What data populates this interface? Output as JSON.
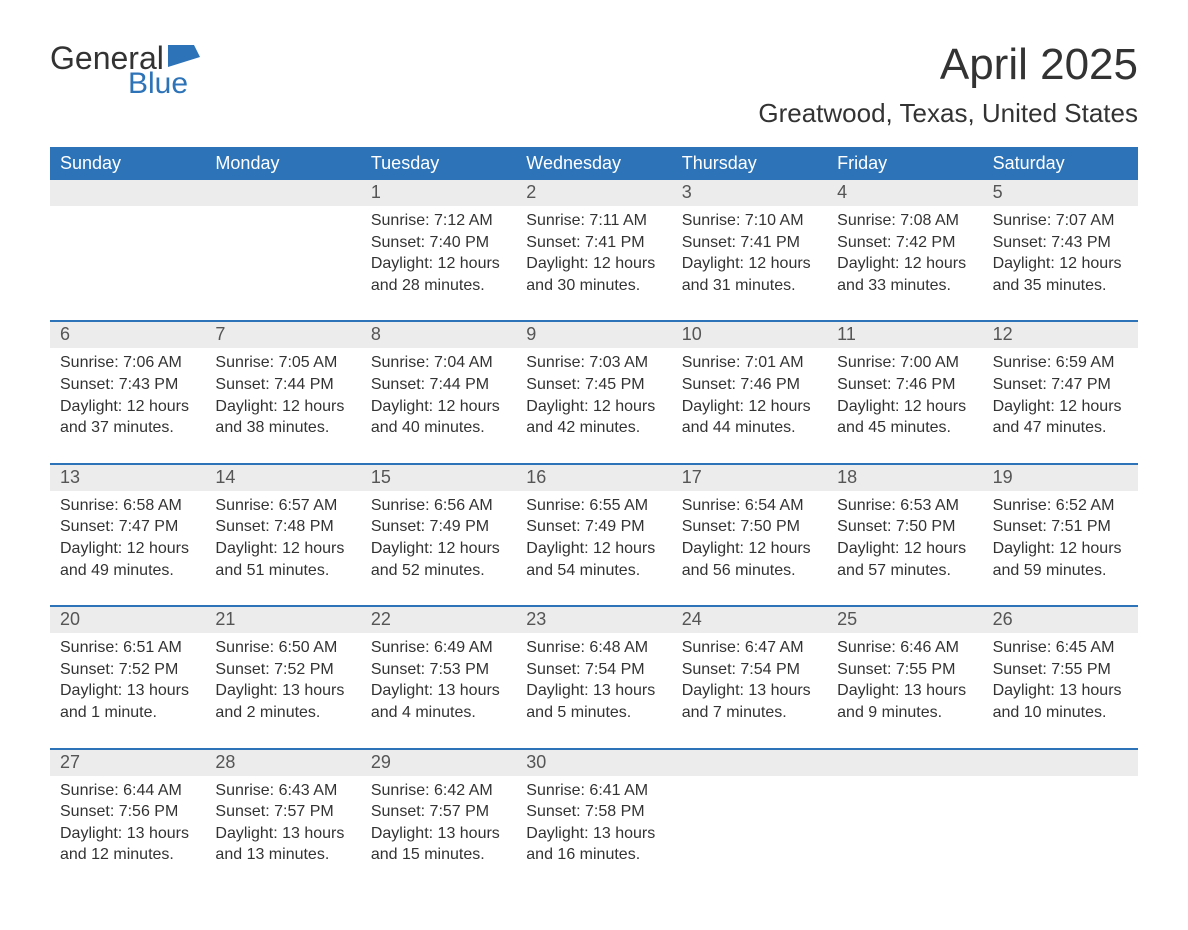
{
  "brand": {
    "name1": "General",
    "name2": "Blue",
    "icon_color": "#2d73b8"
  },
  "title": "April 2025",
  "location": "Greatwood, Texas, United States",
  "colors": {
    "header_bg": "#2d73b8",
    "header_text": "#ffffff",
    "daynum_bg": "#ececec",
    "text": "#333333",
    "week_border": "#2d73b8"
  },
  "days_of_week": [
    "Sunday",
    "Monday",
    "Tuesday",
    "Wednesday",
    "Thursday",
    "Friday",
    "Saturday"
  ],
  "weeks": [
    [
      {
        "n": "",
        "sunrise": "",
        "sunset": "",
        "daylight": ""
      },
      {
        "n": "",
        "sunrise": "",
        "sunset": "",
        "daylight": ""
      },
      {
        "n": "1",
        "sunrise": "Sunrise: 7:12 AM",
        "sunset": "Sunset: 7:40 PM",
        "daylight": "Daylight: 12 hours and 28 minutes."
      },
      {
        "n": "2",
        "sunrise": "Sunrise: 7:11 AM",
        "sunset": "Sunset: 7:41 PM",
        "daylight": "Daylight: 12 hours and 30 minutes."
      },
      {
        "n": "3",
        "sunrise": "Sunrise: 7:10 AM",
        "sunset": "Sunset: 7:41 PM",
        "daylight": "Daylight: 12 hours and 31 minutes."
      },
      {
        "n": "4",
        "sunrise": "Sunrise: 7:08 AM",
        "sunset": "Sunset: 7:42 PM",
        "daylight": "Daylight: 12 hours and 33 minutes."
      },
      {
        "n": "5",
        "sunrise": "Sunrise: 7:07 AM",
        "sunset": "Sunset: 7:43 PM",
        "daylight": "Daylight: 12 hours and 35 minutes."
      }
    ],
    [
      {
        "n": "6",
        "sunrise": "Sunrise: 7:06 AM",
        "sunset": "Sunset: 7:43 PM",
        "daylight": "Daylight: 12 hours and 37 minutes."
      },
      {
        "n": "7",
        "sunrise": "Sunrise: 7:05 AM",
        "sunset": "Sunset: 7:44 PM",
        "daylight": "Daylight: 12 hours and 38 minutes."
      },
      {
        "n": "8",
        "sunrise": "Sunrise: 7:04 AM",
        "sunset": "Sunset: 7:44 PM",
        "daylight": "Daylight: 12 hours and 40 minutes."
      },
      {
        "n": "9",
        "sunrise": "Sunrise: 7:03 AM",
        "sunset": "Sunset: 7:45 PM",
        "daylight": "Daylight: 12 hours and 42 minutes."
      },
      {
        "n": "10",
        "sunrise": "Sunrise: 7:01 AM",
        "sunset": "Sunset: 7:46 PM",
        "daylight": "Daylight: 12 hours and 44 minutes."
      },
      {
        "n": "11",
        "sunrise": "Sunrise: 7:00 AM",
        "sunset": "Sunset: 7:46 PM",
        "daylight": "Daylight: 12 hours and 45 minutes."
      },
      {
        "n": "12",
        "sunrise": "Sunrise: 6:59 AM",
        "sunset": "Sunset: 7:47 PM",
        "daylight": "Daylight: 12 hours and 47 minutes."
      }
    ],
    [
      {
        "n": "13",
        "sunrise": "Sunrise: 6:58 AM",
        "sunset": "Sunset: 7:47 PM",
        "daylight": "Daylight: 12 hours and 49 minutes."
      },
      {
        "n": "14",
        "sunrise": "Sunrise: 6:57 AM",
        "sunset": "Sunset: 7:48 PM",
        "daylight": "Daylight: 12 hours and 51 minutes."
      },
      {
        "n": "15",
        "sunrise": "Sunrise: 6:56 AM",
        "sunset": "Sunset: 7:49 PM",
        "daylight": "Daylight: 12 hours and 52 minutes."
      },
      {
        "n": "16",
        "sunrise": "Sunrise: 6:55 AM",
        "sunset": "Sunset: 7:49 PM",
        "daylight": "Daylight: 12 hours and 54 minutes."
      },
      {
        "n": "17",
        "sunrise": "Sunrise: 6:54 AM",
        "sunset": "Sunset: 7:50 PM",
        "daylight": "Daylight: 12 hours and 56 minutes."
      },
      {
        "n": "18",
        "sunrise": "Sunrise: 6:53 AM",
        "sunset": "Sunset: 7:50 PM",
        "daylight": "Daylight: 12 hours and 57 minutes."
      },
      {
        "n": "19",
        "sunrise": "Sunrise: 6:52 AM",
        "sunset": "Sunset: 7:51 PM",
        "daylight": "Daylight: 12 hours and 59 minutes."
      }
    ],
    [
      {
        "n": "20",
        "sunrise": "Sunrise: 6:51 AM",
        "sunset": "Sunset: 7:52 PM",
        "daylight": "Daylight: 13 hours and 1 minute."
      },
      {
        "n": "21",
        "sunrise": "Sunrise: 6:50 AM",
        "sunset": "Sunset: 7:52 PM",
        "daylight": "Daylight: 13 hours and 2 minutes."
      },
      {
        "n": "22",
        "sunrise": "Sunrise: 6:49 AM",
        "sunset": "Sunset: 7:53 PM",
        "daylight": "Daylight: 13 hours and 4 minutes."
      },
      {
        "n": "23",
        "sunrise": "Sunrise: 6:48 AM",
        "sunset": "Sunset: 7:54 PM",
        "daylight": "Daylight: 13 hours and 5 minutes."
      },
      {
        "n": "24",
        "sunrise": "Sunrise: 6:47 AM",
        "sunset": "Sunset: 7:54 PM",
        "daylight": "Daylight: 13 hours and 7 minutes."
      },
      {
        "n": "25",
        "sunrise": "Sunrise: 6:46 AM",
        "sunset": "Sunset: 7:55 PM",
        "daylight": "Daylight: 13 hours and 9 minutes."
      },
      {
        "n": "26",
        "sunrise": "Sunrise: 6:45 AM",
        "sunset": "Sunset: 7:55 PM",
        "daylight": "Daylight: 13 hours and 10 minutes."
      }
    ],
    [
      {
        "n": "27",
        "sunrise": "Sunrise: 6:44 AM",
        "sunset": "Sunset: 7:56 PM",
        "daylight": "Daylight: 13 hours and 12 minutes."
      },
      {
        "n": "28",
        "sunrise": "Sunrise: 6:43 AM",
        "sunset": "Sunset: 7:57 PM",
        "daylight": "Daylight: 13 hours and 13 minutes."
      },
      {
        "n": "29",
        "sunrise": "Sunrise: 6:42 AM",
        "sunset": "Sunset: 7:57 PM",
        "daylight": "Daylight: 13 hours and 15 minutes."
      },
      {
        "n": "30",
        "sunrise": "Sunrise: 6:41 AM",
        "sunset": "Sunset: 7:58 PM",
        "daylight": "Daylight: 13 hours and 16 minutes."
      },
      {
        "n": "",
        "sunrise": "",
        "sunset": "",
        "daylight": ""
      },
      {
        "n": "",
        "sunrise": "",
        "sunset": "",
        "daylight": ""
      },
      {
        "n": "",
        "sunrise": "",
        "sunset": "",
        "daylight": ""
      }
    ]
  ]
}
